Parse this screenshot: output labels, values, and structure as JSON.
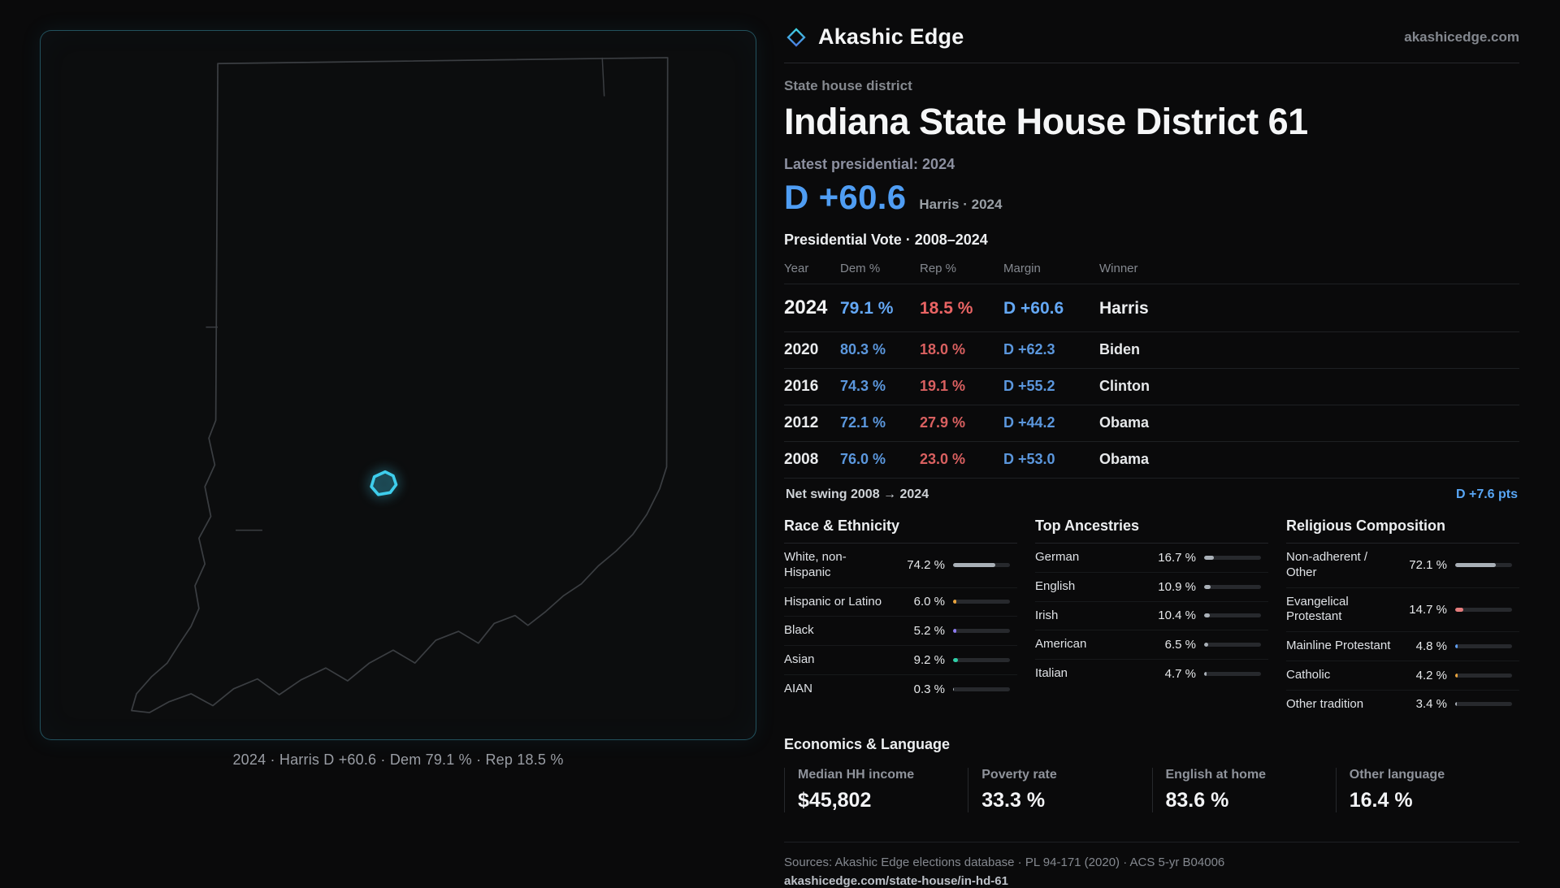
{
  "brand": {
    "name": "Akashic Edge",
    "website": "akashicedge.com",
    "logo_icon": "diamond-icon"
  },
  "page": {
    "district_type_label": "State house district",
    "title": "Indiana State House District 61"
  },
  "latest": {
    "label": "Latest presidential: 2024",
    "value": "D +60.6",
    "detail": "Harris · 2024"
  },
  "colors": {
    "dem_blue": "#64a8f5",
    "rep_red": "#ea6464",
    "accent_cyan": "#3ecdec",
    "background": "#0a0a0b",
    "muted_text": "#84888f"
  },
  "map": {
    "state": "Indiana",
    "caption": "2024 · Harris D +60.6 · Dem 79.1 % · Rep 18.5 %"
  },
  "vote_table": {
    "title": "Presidential Vote · 2008–2024",
    "columns": [
      "Year",
      "Dem %",
      "Rep %",
      "Margin",
      "Winner"
    ],
    "rows": [
      {
        "year": "2024",
        "dem": "79.1 %",
        "rep": "18.5 %",
        "margin": "D +60.6",
        "winner": "Harris"
      },
      {
        "year": "2020",
        "dem": "80.3 %",
        "rep": "18.0 %",
        "margin": "D +62.3",
        "winner": "Biden"
      },
      {
        "year": "2016",
        "dem": "74.3 %",
        "rep": "19.1 %",
        "margin": "D +55.2",
        "winner": "Clinton"
      },
      {
        "year": "2012",
        "dem": "72.1 %",
        "rep": "27.9 %",
        "margin": "D +44.2",
        "winner": "Obama"
      },
      {
        "year": "2008",
        "dem": "76.0 %",
        "rep": "23.0 %",
        "margin": "D +53.0",
        "winner": "Obama"
      }
    ],
    "net_swing_label": "Net swing 2008 → 2024",
    "net_swing_value": "D +7.6 pts"
  },
  "demographics": {
    "race": {
      "title": "Race & Ethnicity",
      "rows": [
        {
          "label": "White, non-Hispanic",
          "value": "74.2 %",
          "pct": 74.2,
          "color": "#a9b0b7"
        },
        {
          "label": "Hispanic or Latino",
          "value": "6.0 %",
          "pct": 6.0,
          "color": "#e8a33d"
        },
        {
          "label": "Black",
          "value": "5.2 %",
          "pct": 5.2,
          "color": "#8d7bf0"
        },
        {
          "label": "Asian",
          "value": "9.2 %",
          "pct": 9.2,
          "color": "#2fd0a8"
        },
        {
          "label": "AIAN",
          "value": "0.3 %",
          "pct": 0.3,
          "color": "#a9b0b7"
        }
      ]
    },
    "ancestries": {
      "title": "Top Ancestries",
      "rows": [
        {
          "label": "German",
          "value": "16.7 %",
          "pct": 16.7,
          "color": "#aab1b8"
        },
        {
          "label": "English",
          "value": "10.9 %",
          "pct": 10.9,
          "color": "#aab1b8"
        },
        {
          "label": "Irish",
          "value": "10.4 %",
          "pct": 10.4,
          "color": "#aab1b8"
        },
        {
          "label": "American",
          "value": "6.5 %",
          "pct": 6.5,
          "color": "#aab1b8"
        },
        {
          "label": "Italian",
          "value": "4.7 %",
          "pct": 4.7,
          "color": "#aab1b8"
        }
      ]
    },
    "religion": {
      "title": "Religious Composition",
      "rows": [
        {
          "label": "Non-adherent / Other",
          "value": "72.1 %",
          "pct": 72.1,
          "color": "#a9b0b7"
        },
        {
          "label": "Evangelical Protestant",
          "value": "14.7 %",
          "pct": 14.7,
          "color": "#e57d7d"
        },
        {
          "label": "Mainline Protestant",
          "value": "4.8 %",
          "pct": 4.8,
          "color": "#5f9df0"
        },
        {
          "label": "Catholic",
          "value": "4.2 %",
          "pct": 4.2,
          "color": "#e8a33d"
        },
        {
          "label": "Other tradition",
          "value": "3.4 %",
          "pct": 3.4,
          "color": "#a9b0b7"
        }
      ]
    }
  },
  "economics": {
    "title": "Economics & Language",
    "stats": [
      {
        "label": "Median HH income",
        "value": "$45,802"
      },
      {
        "label": "Poverty rate",
        "value": "33.3 %"
      },
      {
        "label": "English at home",
        "value": "83.6 %"
      },
      {
        "label": "Other language",
        "value": "16.4 %"
      }
    ]
  },
  "footer": {
    "sources": "Sources: Akashic Edge elections database · PL 94-171 (2020) · ACS 5-yr B04006",
    "url": "akashicedge.com/state-house/in-hd-61"
  },
  "chart_data": [
    {
      "type": "table",
      "title": "Presidential Vote · 2008–2024",
      "columns": [
        "Year",
        "Dem %",
        "Rep %",
        "Margin",
        "Winner"
      ],
      "rows": [
        [
          2024,
          79.1,
          18.5,
          "D +60.6",
          "Harris"
        ],
        [
          2020,
          80.3,
          18.0,
          "D +62.3",
          "Biden"
        ],
        [
          2016,
          74.3,
          19.1,
          "D +55.2",
          "Clinton"
        ],
        [
          2012,
          72.1,
          27.9,
          "D +44.2",
          "Obama"
        ],
        [
          2008,
          76.0,
          23.0,
          "D +53.0",
          "Obama"
        ]
      ],
      "annotation": "Net swing 2008 → 2024: D +7.6 pts"
    },
    {
      "type": "bar",
      "title": "Race & Ethnicity",
      "categories": [
        "White, non-Hispanic",
        "Hispanic or Latino",
        "Black",
        "Asian",
        "AIAN"
      ],
      "values": [
        74.2,
        6.0,
        5.2,
        9.2,
        0.3
      ],
      "xlabel": "",
      "ylabel": "Percent",
      "ylim": [
        0,
        100
      ],
      "legend": false
    },
    {
      "type": "bar",
      "title": "Top Ancestries",
      "categories": [
        "German",
        "English",
        "Irish",
        "American",
        "Italian"
      ],
      "values": [
        16.7,
        10.9,
        10.4,
        6.5,
        4.7
      ],
      "xlabel": "",
      "ylabel": "Percent",
      "ylim": [
        0,
        100
      ],
      "legend": false
    },
    {
      "type": "bar",
      "title": "Religious Composition",
      "categories": [
        "Non-adherent / Other",
        "Evangelical Protestant",
        "Mainline Protestant",
        "Catholic",
        "Other tradition"
      ],
      "values": [
        72.1,
        14.7,
        4.8,
        4.2,
        3.4
      ],
      "xlabel": "",
      "ylabel": "Percent",
      "ylim": [
        0,
        100
      ],
      "legend": false
    }
  ]
}
